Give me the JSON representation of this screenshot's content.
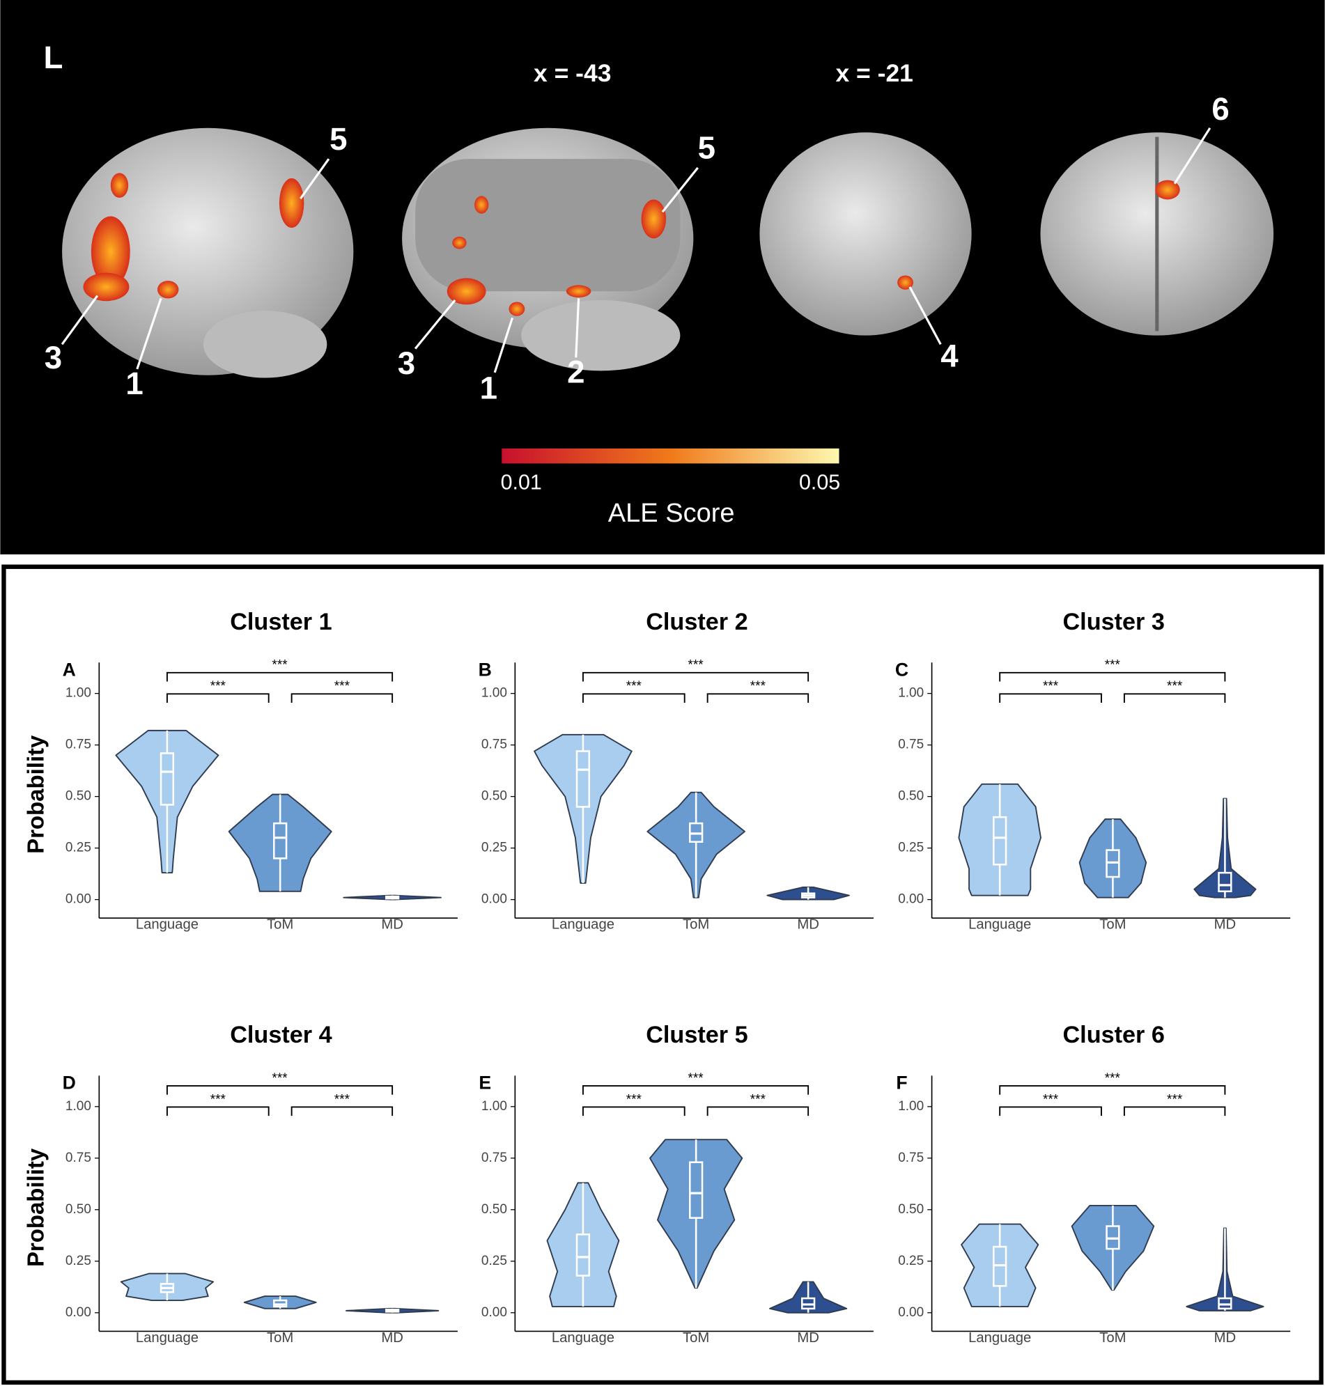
{
  "brain_figure": {
    "orientation_label": "L",
    "slice_labels": [
      "x = -43",
      "x = -21"
    ],
    "cluster_labels": [
      [
        "5",
        "3",
        "1"
      ],
      [
        "5",
        "3",
        "1",
        "2"
      ],
      [
        "4"
      ],
      [
        "6"
      ]
    ],
    "colorbar": {
      "title": "ALE Score",
      "lim": [
        0.01,
        0.05
      ],
      "ticks": [
        {
          "value": 0.01,
          "label": "0.01"
        },
        {
          "value": 0.05,
          "label": "0.05"
        }
      ]
    }
  },
  "chart_data": [
    {
      "type": "violin",
      "panel": "A",
      "title": "Cluster 1",
      "y_label": "Probability",
      "ylim": [
        -0.09,
        1.15
      ],
      "yticks": [
        {
          "value": 0,
          "label": "0.00"
        },
        {
          "value": 0.25,
          "label": "0.25"
        },
        {
          "value": 0.5,
          "label": "0.50"
        },
        {
          "value": 0.75,
          "label": "0.75"
        },
        {
          "value": 1,
          "label": "1.00"
        }
      ],
      "comparisons": [
        {
          "groups": [
            0,
            1
          ],
          "label": "***"
        },
        {
          "groups": [
            1,
            2
          ],
          "label": "***"
        },
        {
          "groups": [
            0,
            2
          ],
          "label": "***"
        }
      ],
      "series": [
        {
          "name": "Language",
          "color": "#a9cdee",
          "min": 0.13,
          "q1": 0.46,
          "median": 0.62,
          "q3": 0.71,
          "max": 0.82,
          "shape_y": [
            0.82,
            0.7,
            0.55,
            0.4,
            0.2,
            0.13
          ],
          "shape_w": [
            0.37,
            1,
            0.5,
            0.2,
            0.12,
            0.1
          ]
        },
        {
          "name": "ToM",
          "color": "#6a9bd0",
          "min": 0.04,
          "q1": 0.2,
          "median": 0.3,
          "q3": 0.37,
          "max": 0.51,
          "shape_y": [
            0.51,
            0.45,
            0.33,
            0.2,
            0.1,
            0.04
          ],
          "shape_w": [
            0.15,
            0.45,
            1,
            0.6,
            0.45,
            0.4
          ]
        },
        {
          "name": "MD",
          "color": "#2e4f8f",
          "min": 0,
          "q1": 0.005,
          "median": 0.01,
          "q3": 0.015,
          "max": 0.02,
          "shape_y": [
            0.02,
            0.01,
            0
          ],
          "shape_w": [
            0.05,
            0.95,
            0.05
          ]
        }
      ]
    },
    {
      "type": "violin",
      "panel": "B",
      "title": "Cluster 2",
      "ylim": [
        -0.09,
        1.15
      ],
      "yticks": [
        {
          "value": 0,
          "label": "0.00"
        },
        {
          "value": 0.25,
          "label": "0.25"
        },
        {
          "value": 0.5,
          "label": "0.50"
        },
        {
          "value": 0.75,
          "label": "0.75"
        },
        {
          "value": 1,
          "label": "1.00"
        }
      ],
      "comparisons": [
        {
          "groups": [
            0,
            1
          ],
          "label": "***"
        },
        {
          "groups": [
            1,
            2
          ],
          "label": "***"
        },
        {
          "groups": [
            0,
            2
          ],
          "label": "***"
        }
      ],
      "series": [
        {
          "name": "Language",
          "color": "#a9cdee",
          "min": 0.08,
          "q1": 0.45,
          "median": 0.63,
          "q3": 0.72,
          "max": 0.8,
          "shape_y": [
            0.8,
            0.72,
            0.65,
            0.5,
            0.3,
            0.08
          ],
          "shape_w": [
            0.4,
            0.95,
            0.8,
            0.35,
            0.15,
            0.05
          ]
        },
        {
          "name": "ToM",
          "color": "#6a9bd0",
          "min": 0.01,
          "q1": 0.28,
          "median": 0.32,
          "q3": 0.37,
          "max": 0.52,
          "shape_y": [
            0.52,
            0.45,
            0.33,
            0.22,
            0.1,
            0.01
          ],
          "shape_w": [
            0.1,
            0.35,
            0.95,
            0.4,
            0.1,
            0.05
          ]
        },
        {
          "name": "MD",
          "color": "#2e4f8f",
          "min": 0,
          "q1": 0.01,
          "median": 0.02,
          "q3": 0.03,
          "max": 0.06,
          "shape_y": [
            0.06,
            0.02,
            0
          ],
          "shape_w": [
            0.1,
            0.8,
            0.5
          ]
        }
      ]
    },
    {
      "type": "violin",
      "panel": "C",
      "title": "Cluster 3",
      "ylim": [
        -0.09,
        1.15
      ],
      "yticks": [
        {
          "value": 0,
          "label": "0.00"
        },
        {
          "value": 0.25,
          "label": "0.25"
        },
        {
          "value": 0.5,
          "label": "0.50"
        },
        {
          "value": 0.75,
          "label": "0.75"
        },
        {
          "value": 1,
          "label": "1.00"
        }
      ],
      "comparisons": [
        {
          "groups": [
            0,
            1
          ],
          "label": "***"
        },
        {
          "groups": [
            1,
            2
          ],
          "label": "***"
        },
        {
          "groups": [
            0,
            2
          ],
          "label": "***"
        }
      ],
      "series": [
        {
          "name": "Language",
          "color": "#a9cdee",
          "min": 0.02,
          "q1": 0.17,
          "median": 0.3,
          "q3": 0.4,
          "max": 0.56,
          "shape_y": [
            0.56,
            0.45,
            0.3,
            0.15,
            0.05,
            0.02
          ],
          "shape_w": [
            0.35,
            0.7,
            0.8,
            0.6,
            0.6,
            0.55
          ]
        },
        {
          "name": "ToM",
          "color": "#6a9bd0",
          "min": 0.01,
          "q1": 0.11,
          "median": 0.18,
          "q3": 0.24,
          "max": 0.39,
          "shape_y": [
            0.39,
            0.3,
            0.18,
            0.08,
            0.01
          ],
          "shape_w": [
            0.15,
            0.45,
            0.65,
            0.55,
            0.3
          ]
        },
        {
          "name": "MD",
          "color": "#2e4f8f",
          "min": 0.01,
          "q1": 0.04,
          "median": 0.07,
          "q3": 0.13,
          "max": 0.49,
          "shape_y": [
            0.49,
            0.3,
            0.15,
            0.05,
            0.02,
            0.01
          ],
          "shape_w": [
            0.03,
            0.05,
            0.12,
            0.6,
            0.5,
            0.2
          ]
        }
      ]
    },
    {
      "type": "violin",
      "panel": "D",
      "title": "Cluster 4",
      "y_label": "Probability",
      "ylim": [
        -0.09,
        1.15
      ],
      "yticks": [
        {
          "value": 0,
          "label": "0.00"
        },
        {
          "value": 0.25,
          "label": "0.25"
        },
        {
          "value": 0.5,
          "label": "0.50"
        },
        {
          "value": 0.75,
          "label": "0.75"
        },
        {
          "value": 1,
          "label": "1.00"
        }
      ],
      "comparisons": [
        {
          "groups": [
            0,
            1
          ],
          "label": "***"
        },
        {
          "groups": [
            1,
            2
          ],
          "label": "***"
        },
        {
          "groups": [
            0,
            2
          ],
          "label": "***"
        }
      ],
      "series": [
        {
          "name": "Language",
          "color": "#a9cdee",
          "min": 0.06,
          "q1": 0.1,
          "median": 0.12,
          "q3": 0.14,
          "max": 0.19,
          "shape_y": [
            0.19,
            0.15,
            0.12,
            0.08,
            0.06
          ],
          "shape_w": [
            0.35,
            0.9,
            0.75,
            0.8,
            0.3
          ]
        },
        {
          "name": "ToM",
          "color": "#6a9bd0",
          "min": 0.02,
          "q1": 0.03,
          "median": 0.04,
          "q3": 0.06,
          "max": 0.08,
          "shape_y": [
            0.08,
            0.05,
            0.02
          ],
          "shape_w": [
            0.3,
            0.7,
            0.3
          ]
        },
        {
          "name": "MD",
          "color": "#2e4f8f",
          "min": 0,
          "q1": 0.005,
          "median": 0.01,
          "q3": 0.015,
          "max": 0.02,
          "shape_y": [
            0.02,
            0.01,
            0
          ],
          "shape_w": [
            0.05,
            0.9,
            0.1
          ]
        }
      ]
    },
    {
      "type": "violin",
      "panel": "E",
      "title": "Cluster 5",
      "ylim": [
        -0.09,
        1.15
      ],
      "yticks": [
        {
          "value": 0,
          "label": "0.00"
        },
        {
          "value": 0.25,
          "label": "0.25"
        },
        {
          "value": 0.5,
          "label": "0.50"
        },
        {
          "value": 0.75,
          "label": "0.75"
        },
        {
          "value": 1,
          "label": "1.00"
        }
      ],
      "comparisons": [
        {
          "groups": [
            0,
            1
          ],
          "label": "***"
        },
        {
          "groups": [
            1,
            2
          ],
          "label": "***"
        },
        {
          "groups": [
            0,
            2
          ],
          "label": "***"
        }
      ],
      "series": [
        {
          "name": "Language",
          "color": "#a9cdee",
          "min": 0.03,
          "q1": 0.18,
          "median": 0.27,
          "q3": 0.38,
          "max": 0.63,
          "shape_y": [
            0.63,
            0.5,
            0.35,
            0.2,
            0.08,
            0.03
          ],
          "shape_w": [
            0.1,
            0.35,
            0.7,
            0.5,
            0.65,
            0.6
          ]
        },
        {
          "name": "ToM",
          "color": "#6a9bd0",
          "min": 0.12,
          "q1": 0.46,
          "median": 0.58,
          "q3": 0.73,
          "max": 0.84,
          "shape_y": [
            0.84,
            0.75,
            0.6,
            0.45,
            0.3,
            0.12
          ],
          "shape_w": [
            0.6,
            0.9,
            0.55,
            0.75,
            0.35,
            0.02
          ]
        },
        {
          "name": "MD",
          "color": "#2e4f8f",
          "min": 0,
          "q1": 0.02,
          "median": 0.04,
          "q3": 0.07,
          "max": 0.15,
          "shape_y": [
            0.15,
            0.07,
            0.02,
            0
          ],
          "shape_w": [
            0.1,
            0.3,
            0.75,
            0.4
          ]
        }
      ]
    },
    {
      "type": "violin",
      "panel": "F",
      "title": "Cluster 6",
      "ylim": [
        -0.09,
        1.15
      ],
      "yticks": [
        {
          "value": 0,
          "label": "0.00"
        },
        {
          "value": 0.25,
          "label": "0.25"
        },
        {
          "value": 0.5,
          "label": "0.50"
        },
        {
          "value": 0.75,
          "label": "0.75"
        },
        {
          "value": 1,
          "label": "1.00"
        }
      ],
      "comparisons": [
        {
          "groups": [
            0,
            1
          ],
          "label": "***"
        },
        {
          "groups": [
            1,
            2
          ],
          "label": "***"
        },
        {
          "groups": [
            0,
            2
          ],
          "label": "***"
        }
      ],
      "series": [
        {
          "name": "Language",
          "color": "#a9cdee",
          "min": 0.03,
          "q1": 0.13,
          "median": 0.23,
          "q3": 0.32,
          "max": 0.43,
          "shape_y": [
            0.43,
            0.33,
            0.22,
            0.12,
            0.03
          ],
          "shape_w": [
            0.4,
            0.75,
            0.5,
            0.7,
            0.55
          ]
        },
        {
          "name": "ToM",
          "color": "#6a9bd0",
          "min": 0.11,
          "q1": 0.31,
          "median": 0.36,
          "q3": 0.42,
          "max": 0.52,
          "shape_y": [
            0.52,
            0.42,
            0.3,
            0.2,
            0.11
          ],
          "shape_w": [
            0.45,
            0.8,
            0.6,
            0.25,
            0.02
          ]
        },
        {
          "name": "MD",
          "color": "#2e4f8f",
          "min": 0.01,
          "q1": 0.02,
          "median": 0.04,
          "q3": 0.07,
          "max": 0.41,
          "shape_y": [
            0.41,
            0.2,
            0.08,
            0.03,
            0.01
          ],
          "shape_w": [
            0.02,
            0.04,
            0.15,
            0.75,
            0.5
          ]
        }
      ]
    }
  ]
}
